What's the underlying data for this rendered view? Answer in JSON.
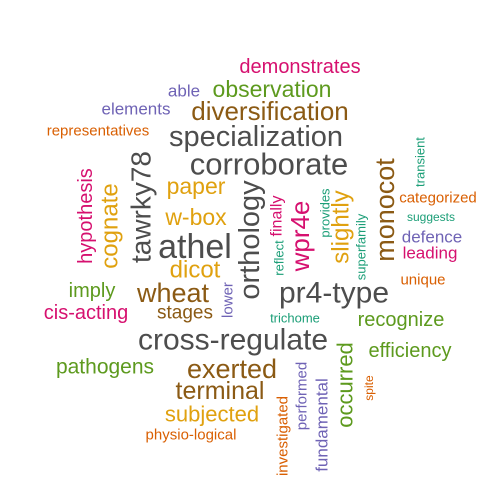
{
  "colors": {
    "grey": "#4d4d4d",
    "brown": "#8b5a14",
    "orange": "#d95f02",
    "green": "#5d9a1e",
    "purple": "#6f63b5",
    "magenta": "#d6106f",
    "gold": "#e0a10f",
    "teal": "#1b9e77"
  },
  "words": [
    {
      "text": "demonstrates",
      "color": "magenta"
    },
    {
      "text": "able",
      "color": "purple"
    },
    {
      "text": "observation",
      "color": "green"
    },
    {
      "text": "elements",
      "color": "purple"
    },
    {
      "text": "diversification",
      "color": "brown"
    },
    {
      "text": "representatives",
      "color": "orange"
    },
    {
      "text": "specialization",
      "color": "grey"
    },
    {
      "text": "transient",
      "color": "teal"
    },
    {
      "text": "corroborate",
      "color": "grey"
    },
    {
      "text": "tawrky78",
      "color": "grey"
    },
    {
      "text": "monocot",
      "color": "brown"
    },
    {
      "text": "hypothesis",
      "color": "magenta"
    },
    {
      "text": "cognate",
      "color": "gold"
    },
    {
      "text": "paper",
      "color": "gold"
    },
    {
      "text": "categorized",
      "color": "orange"
    },
    {
      "text": "orthology",
      "color": "grey"
    },
    {
      "text": "provides",
      "color": "teal"
    },
    {
      "text": "slightly",
      "color": "gold"
    },
    {
      "text": "suggests",
      "color": "teal"
    },
    {
      "text": "w-box",
      "color": "gold"
    },
    {
      "text": "finally",
      "color": "magenta"
    },
    {
      "text": "wpr4e",
      "color": "magenta"
    },
    {
      "text": "defence",
      "color": "purple"
    },
    {
      "text": "athel",
      "color": "grey"
    },
    {
      "text": "superfamily",
      "color": "teal"
    },
    {
      "text": "leading",
      "color": "magenta"
    },
    {
      "text": "reflect",
      "color": "teal"
    },
    {
      "text": "dicot",
      "color": "gold"
    },
    {
      "text": "unique",
      "color": "orange"
    },
    {
      "text": "imply",
      "color": "green"
    },
    {
      "text": "wheat",
      "color": "brown"
    },
    {
      "text": "pr4-type",
      "color": "grey"
    },
    {
      "text": "lower",
      "color": "purple"
    },
    {
      "text": "cis-acting",
      "color": "magenta"
    },
    {
      "text": "stages",
      "color": "brown"
    },
    {
      "text": "recognize",
      "color": "green"
    },
    {
      "text": "trichome",
      "color": "teal"
    },
    {
      "text": "cross-regulate",
      "color": "grey"
    },
    {
      "text": "efficiency",
      "color": "green"
    },
    {
      "text": "pathogens",
      "color": "green"
    },
    {
      "text": "exerted",
      "color": "brown"
    },
    {
      "text": "occurred",
      "color": "green"
    },
    {
      "text": "performed",
      "color": "purple"
    },
    {
      "text": "terminal",
      "color": "brown"
    },
    {
      "text": "spite",
      "color": "orange"
    },
    {
      "text": "fundamental",
      "color": "purple"
    },
    {
      "text": "subjected",
      "color": "gold"
    },
    {
      "text": "investigated",
      "color": "orange"
    },
    {
      "text": "physio-logical",
      "color": "orange"
    }
  ]
}
